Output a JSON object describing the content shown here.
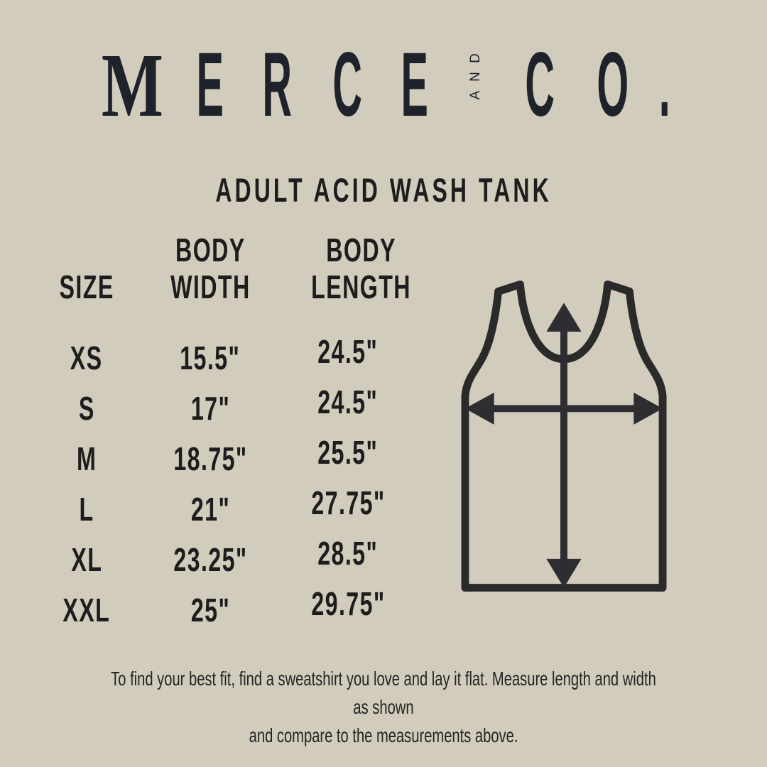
{
  "page": {
    "background_color": "#d2ccbc",
    "text_color": "#1d1d1d",
    "logo_color": "#1e222b"
  },
  "logo": {
    "word1": "MERCE",
    "conjunction": "AND",
    "word2": "CO."
  },
  "product_title": "ADULT ACID WASH TANK",
  "size_chart": {
    "headers": {
      "size": "SIZE",
      "width": "BODY\nWIDTH",
      "length": "BODY\nLENGTH"
    },
    "rows": [
      {
        "size": "XS",
        "body_width": "15.5\"",
        "body_length": "24.5\""
      },
      {
        "size": "S",
        "body_width": "17\"",
        "body_length": "24.5\""
      },
      {
        "size": "M",
        "body_width": "18.75\"",
        "body_length": "25.5\""
      },
      {
        "size": "L",
        "body_width": "21\"",
        "body_length": "27.75\""
      },
      {
        "size": "XL",
        "body_width": "23.25\"",
        "body_length": "28.5\""
      },
      {
        "size": "XXL",
        "body_width": "25\"",
        "body_length": "29.75\""
      }
    ]
  },
  "diagram": {
    "stroke_color": "#2a2a2a",
    "arrow_color": "#2e2d31",
    "tank_icon": "tank-top-outline",
    "vertical_arrow_icon": "body-length-arrow",
    "horizontal_arrow_icon": "body-width-arrow"
  },
  "footer": {
    "line1": "To find your best fit, find a sweatshirt you love and lay it flat. Measure length and width as shown",
    "line2": "and compare to the measurements above."
  }
}
